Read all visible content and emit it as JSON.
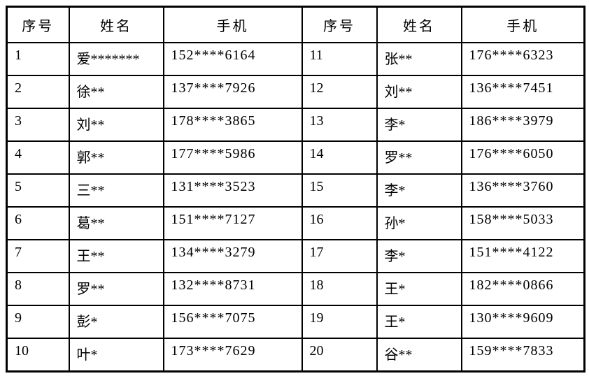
{
  "colors": {
    "background": "#ffffff",
    "border": "#000000",
    "text": "#000000"
  },
  "table": {
    "headers": {
      "serial": "序号",
      "name": "姓名",
      "phone": "手机"
    },
    "rows": [
      {
        "left": {
          "no": "1",
          "name": "爱*******",
          "phone": "152****6164"
        },
        "right": {
          "no": "11",
          "name": "张**",
          "phone": "176****6323"
        }
      },
      {
        "left": {
          "no": "2",
          "name": "徐**",
          "phone": "137****7926"
        },
        "right": {
          "no": "12",
          "name": "刘**",
          "phone": "136****7451"
        }
      },
      {
        "left": {
          "no": "3",
          "name": "刘**",
          "phone": "178****3865"
        },
        "right": {
          "no": "13",
          "name": "李*",
          "phone": "186****3979"
        }
      },
      {
        "left": {
          "no": "4",
          "name": "郭**",
          "phone": "177****5986"
        },
        "right": {
          "no": "14",
          "name": "罗**",
          "phone": "176****6050"
        }
      },
      {
        "left": {
          "no": "5",
          "name": "三**",
          "phone": "131****3523"
        },
        "right": {
          "no": "15",
          "name": "李*",
          "phone": "136****3760"
        }
      },
      {
        "left": {
          "no": "6",
          "name": "葛**",
          "phone": "151****7127"
        },
        "right": {
          "no": "16",
          "name": "孙*",
          "phone": "158****5033"
        }
      },
      {
        "left": {
          "no": "7",
          "name": "王**",
          "phone": "134****3279"
        },
        "right": {
          "no": "17",
          "name": "李*",
          "phone": "151****4122"
        }
      },
      {
        "left": {
          "no": "8",
          "name": "罗**",
          "phone": "132****8731"
        },
        "right": {
          "no": "18",
          "name": "王*",
          "phone": "182****0866"
        }
      },
      {
        "left": {
          "no": "9",
          "name": "彭*",
          "phone": "156****7075"
        },
        "right": {
          "no": "19",
          "name": "王*",
          "phone": "130****9609"
        }
      },
      {
        "left": {
          "no": "10",
          "name": "叶*",
          "phone": "173****7629"
        },
        "right": {
          "no": "20",
          "name": "谷**",
          "phone": "159****7833"
        }
      }
    ]
  }
}
